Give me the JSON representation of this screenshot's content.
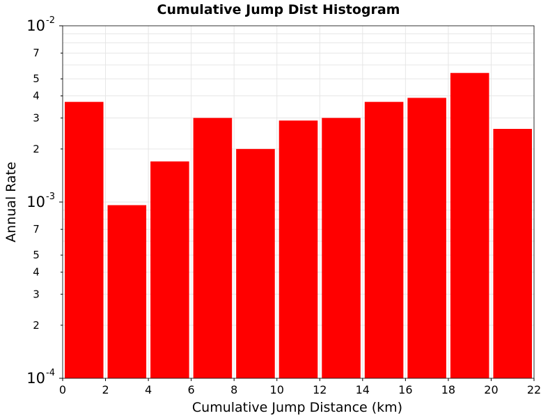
{
  "chart_data": {
    "type": "bar",
    "title": "Cumulative Jump Dist Histogram",
    "xlabel": "Cumulative Jump Distance (km)",
    "ylabel": "Annual Rate",
    "x_scale": "linear",
    "y_scale": "log",
    "xlim": [
      0,
      22
    ],
    "ylim": [
      0.0001,
      0.01
    ],
    "grid": true,
    "x_ticks": [
      "0",
      "2",
      "4",
      "6",
      "8",
      "10",
      "12",
      "14",
      "16",
      "18",
      "20",
      "22"
    ],
    "x_tick_values": [
      0,
      2,
      4,
      6,
      8,
      10,
      12,
      14,
      16,
      18,
      20,
      22
    ],
    "y_major_ticks": [
      {
        "value": 0.01,
        "base": "10",
        "exp": "-2"
      },
      {
        "value": 0.001,
        "base": "10",
        "exp": "-3"
      },
      {
        "value": 0.0001,
        "base": "10",
        "exp": "-4"
      }
    ],
    "y_minor_tick_labels": [
      {
        "value": 0.007,
        "label": "7"
      },
      {
        "value": 0.005,
        "label": "5"
      },
      {
        "value": 0.004,
        "label": "4"
      },
      {
        "value": 0.003,
        "label": "3"
      },
      {
        "value": 0.002,
        "label": "2"
      },
      {
        "value": 0.0007,
        "label": "7"
      },
      {
        "value": 0.0005,
        "label": "5"
      },
      {
        "value": 0.0004,
        "label": "4"
      },
      {
        "value": 0.0003,
        "label": "3"
      },
      {
        "value": 0.0002,
        "label": "2"
      }
    ],
    "bar_color": "#ff0000",
    "bins": [
      {
        "x0": 0,
        "x1": 2,
        "value": 0.0037
      },
      {
        "x0": 2,
        "x1": 4,
        "value": 0.00096
      },
      {
        "x0": 4,
        "x1": 6,
        "value": 0.0017
      },
      {
        "x0": 6,
        "x1": 8,
        "value": 0.003
      },
      {
        "x0": 8,
        "x1": 10,
        "value": 0.002
      },
      {
        "x0": 10,
        "x1": 12,
        "value": 0.0029
      },
      {
        "x0": 12,
        "x1": 14,
        "value": 0.003
      },
      {
        "x0": 14,
        "x1": 16,
        "value": 0.0037
      },
      {
        "x0": 16,
        "x1": 18,
        "value": 0.0039
      },
      {
        "x0": 18,
        "x1": 20,
        "value": 0.0054
      },
      {
        "x0": 20,
        "x1": 22,
        "value": 0.0026
      }
    ]
  }
}
